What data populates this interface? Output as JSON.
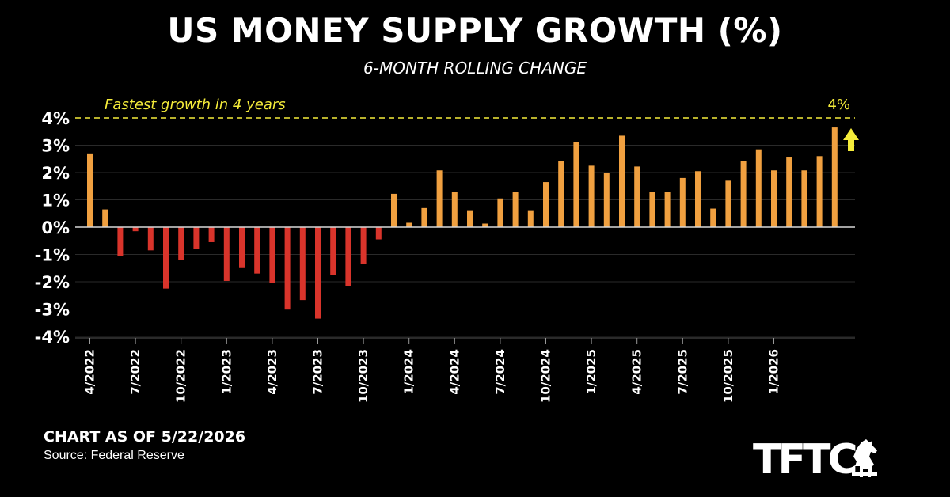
{
  "header": {
    "title": "US MONEY SUPPLY GROWTH (%)",
    "subtitle": "6-MONTH ROLLING CHANGE"
  },
  "footer": {
    "chart_date": "CHART AS OF 5/22/2026",
    "source": "Source: Federal Reserve"
  },
  "logo": {
    "text": "TFTC",
    "icon": "horse-icon"
  },
  "colors": {
    "background": "#000000",
    "positive": "#f0a040",
    "negative": "#d9342b",
    "highlight": "#f5ec3a",
    "text": "#ffffff"
  },
  "chart_data": {
    "type": "bar",
    "title": "US MONEY SUPPLY GROWTH (%)",
    "subtitle": "6-MONTH ROLLING CHANGE",
    "y_ticks": [
      "4%",
      "3%",
      "2%",
      "1%",
      "0%",
      "-1%",
      "-2%",
      "-3%",
      "-4%"
    ],
    "ylim": [
      -4,
      4
    ],
    "x_labels": [
      "4/2022",
      "7/2022",
      "10/2022",
      "1/2023",
      "4/2023",
      "7/2023",
      "10/2023",
      "1/2024",
      "4/2024",
      "7/2024",
      "10/2024",
      "1/2025",
      "4/2025",
      "7/2025",
      "10/2025",
      "1/2026"
    ],
    "categories": [
      "4/2022",
      "5/2022",
      "6/2022",
      "7/2022",
      "8/2022",
      "9/2022",
      "10/2022",
      "11/2022",
      "12/2022",
      "1/2023",
      "2/2023",
      "3/2023",
      "4/2023",
      "5/2023",
      "6/2023",
      "7/2023",
      "8/2023",
      "9/2023",
      "10/2023",
      "11/2023",
      "12/2023",
      "1/2024",
      "2/2024",
      "3/2024",
      "4/2024",
      "5/2024",
      "6/2024",
      "7/2024",
      "8/2024",
      "9/2024",
      "10/2024",
      "11/2024",
      "12/2024",
      "1/2025",
      "2/2025",
      "3/2025",
      "4/2025",
      "5/2025",
      "6/2025",
      "7/2025",
      "8/2025",
      "9/2025",
      "10/2025",
      "11/2025",
      "12/2025",
      "1/2026",
      "2/2026",
      "3/2026",
      "4/2026",
      "5/2026"
    ],
    "values": [
      2.7,
      0.65,
      -1.05,
      -0.15,
      -0.85,
      -2.25,
      -1.2,
      -0.8,
      -0.55,
      -1.97,
      -1.5,
      -1.7,
      -2.05,
      -3.02,
      -2.67,
      -3.35,
      -1.75,
      -2.15,
      -1.35,
      -0.45,
      1.22,
      0.16,
      0.7,
      2.08,
      1.3,
      0.62,
      0.13,
      1.05,
      1.3,
      0.62,
      1.65,
      2.43,
      3.12,
      2.25,
      1.98,
      3.35,
      2.22,
      1.3,
      1.3,
      1.8,
      2.05,
      0.68,
      1.7,
      2.43,
      2.85,
      2.08,
      2.55,
      2.08,
      2.6,
      3.65
    ],
    "grid": true,
    "reference_line": {
      "value": 4,
      "label": "Fastest growth in 4 years",
      "value_label": "4%"
    }
  }
}
